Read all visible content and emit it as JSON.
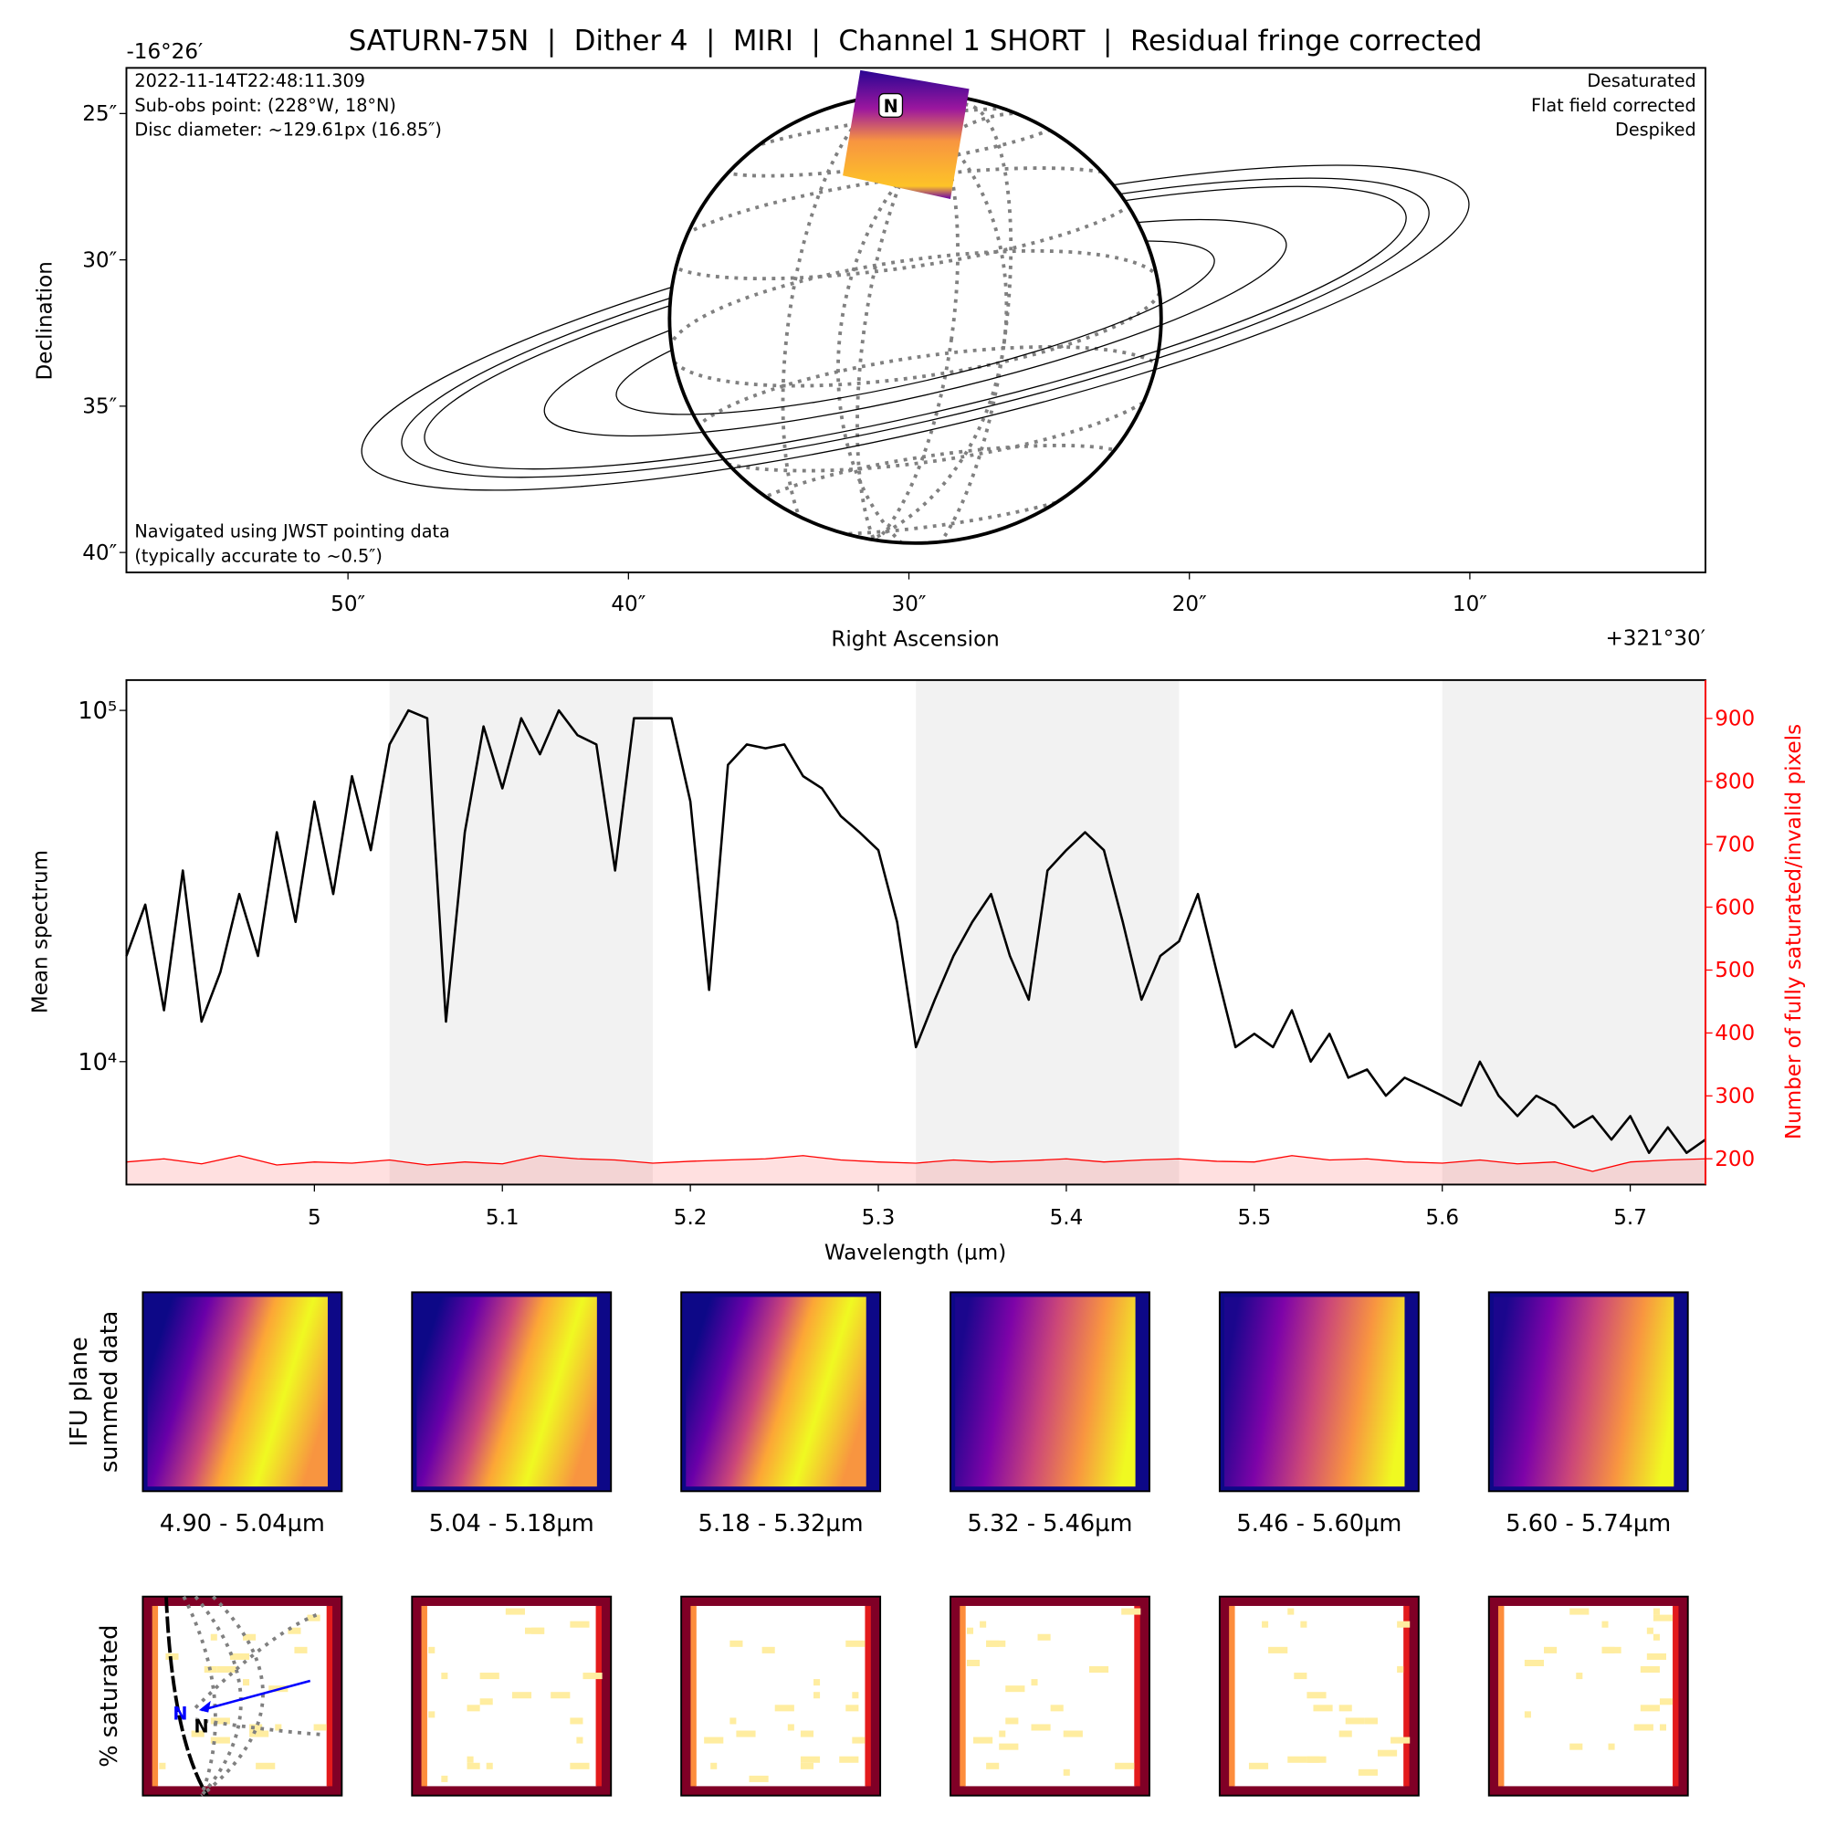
{
  "chart_data": [
    {
      "type": "map",
      "title": "SATURN-75N  |  Dither 4  |  MIRI  |  Channel 1 SHORT  |  Residual fringe corrected",
      "xlabel": "Right Ascension",
      "ylabel": "Declination",
      "x_offset_label": "+321°30′",
      "y_offset_label": "-16°26′",
      "annotations_left": [
        "2022-11-14T22:48:11.309",
        "Sub-obs point: (228°W, 18°N)",
        "Disc diameter: ~129.61px (16.85″)"
      ],
      "annotations_right": [
        "Desaturated",
        "Flat field corrected",
        "Despiked"
      ],
      "footnote": [
        "Navigated using JWST pointing data",
        "(typically accurate to ~0.5″)"
      ],
      "north_label": "N",
      "xlim": [
        57.9,
        1.6
      ],
      "ylim": [
        40.68,
        23.44
      ],
      "xticks": [
        {
          "value": 50,
          "label": "50″"
        },
        {
          "value": 40,
          "label": "40″"
        },
        {
          "value": 30,
          "label": "30″"
        },
        {
          "value": 20,
          "label": "20″"
        },
        {
          "value": 10,
          "label": "10″"
        }
      ],
      "yticks": [
        {
          "value": 25,
          "label": "25″"
        },
        {
          "value": 30,
          "label": "30″"
        },
        {
          "value": 35,
          "label": "35″"
        },
        {
          "value": 40,
          "label": "40″"
        }
      ]
    },
    {
      "type": "line",
      "xlabel": "Wavelength (µm)",
      "ylabel": "Mean spectrum",
      "y2label": "Number of fully saturated/invalid pixels",
      "log_y": true,
      "xlim": [
        4.9,
        5.74
      ],
      "ylim": [
        4467,
        122000
      ],
      "y2lim": [
        159,
        961
      ],
      "xticks": [
        5.0,
        5.1,
        5.2,
        5.3,
        5.4,
        5.5,
        5.6,
        5.7
      ],
      "yticks": [
        {
          "value": 10000,
          "label": "10⁴"
        },
        {
          "value": 100000,
          "label": "10⁵"
        }
      ],
      "y2ticks": [
        200,
        300,
        400,
        500,
        600,
        700,
        800,
        900
      ],
      "shaded_ranges": [
        [
          5.04,
          5.18
        ],
        [
          5.32,
          5.46
        ],
        [
          5.6,
          5.74
        ]
      ],
      "series": [
        {
          "color": "#000000",
          "x": [
            4.9,
            4.91,
            4.92,
            4.93,
            4.94,
            4.95,
            4.96,
            4.97,
            4.98,
            4.99,
            5.0,
            5.01,
            5.02,
            5.03,
            5.04,
            5.05,
            5.06,
            5.07,
            5.08,
            5.09,
            5.1,
            5.11,
            5.12,
            5.13,
            5.14,
            5.15,
            5.16,
            5.17,
            5.18,
            5.19,
            5.2,
            5.21,
            5.22,
            5.23,
            5.24,
            5.25,
            5.26,
            5.27,
            5.28,
            5.29,
            5.3,
            5.31,
            5.32,
            5.33,
            5.34,
            5.35,
            5.36,
            5.37,
            5.38,
            5.39,
            5.4,
            5.41,
            5.42,
            5.43,
            5.44,
            5.45,
            5.46,
            5.47,
            5.48,
            5.49,
            5.5,
            5.51,
            5.52,
            5.53,
            5.54,
            5.55,
            5.56,
            5.57,
            5.58,
            5.59,
            5.6,
            5.61,
            5.62,
            5.63,
            5.64,
            5.65,
            5.66,
            5.67,
            5.68,
            5.69,
            5.7,
            5.71,
            5.72,
            5.73,
            5.74
          ],
          "values": [
            20000,
            28000,
            14000,
            35000,
            13000,
            18000,
            30000,
            20000,
            45000,
            25000,
            55000,
            30000,
            65000,
            40000,
            80000,
            100000,
            95000,
            13000,
            45000,
            90000,
            60000,
            95000,
            75000,
            100000,
            85000,
            80000,
            35000,
            95000,
            95000,
            95000,
            55000,
            16000,
            70000,
            80000,
            78000,
            80000,
            65000,
            60000,
            50000,
            45000,
            40000,
            25000,
            11000,
            15000,
            20000,
            25000,
            30000,
            20000,
            15000,
            35000,
            40000,
            45000,
            40000,
            25000,
            15000,
            20000,
            22000,
            30000,
            18000,
            11000,
            12000,
            11000,
            14000,
            10000,
            12000,
            9000,
            9500,
            8000,
            9000,
            8500,
            8000,
            7500,
            10000,
            8000,
            7000,
            8000,
            7500,
            6500,
            7000,
            6000,
            7000,
            5500,
            6500,
            5500,
            6000
          ]
        },
        {
          "color": "#ff0000",
          "axis": "y2",
          "x": [
            4.9,
            4.92,
            4.94,
            4.96,
            4.98,
            5.0,
            5.02,
            5.04,
            5.06,
            5.08,
            5.1,
            5.12,
            5.14,
            5.16,
            5.18,
            5.2,
            5.22,
            5.24,
            5.26,
            5.28,
            5.3,
            5.32,
            5.34,
            5.36,
            5.38,
            5.4,
            5.42,
            5.44,
            5.46,
            5.48,
            5.5,
            5.52,
            5.54,
            5.56,
            5.58,
            5.6,
            5.62,
            5.64,
            5.66,
            5.68,
            5.7,
            5.72,
            5.74
          ],
          "values": [
            195,
            200,
            192,
            205,
            190,
            195,
            193,
            198,
            190,
            195,
            192,
            205,
            200,
            198,
            193,
            196,
            198,
            200,
            205,
            198,
            195,
            193,
            198,
            195,
            197,
            200,
            195,
            198,
            200,
            196,
            195,
            205,
            198,
            200,
            195,
            193,
            198,
            192,
            195,
            180,
            195,
            198,
            200
          ]
        }
      ]
    },
    {
      "type": "image-grid",
      "row_labels": [
        [
          "IFU plane",
          "summed data"
        ],
        [
          "% saturated"
        ]
      ],
      "panel_labels": [
        "4.90 - 5.04µm",
        "5.04 - 5.18µm",
        "5.18 - 5.32µm",
        "5.32 - 5.46µm",
        "5.46 - 5.60µm",
        "5.60 - 5.74µm"
      ],
      "north_label": "N"
    }
  ]
}
